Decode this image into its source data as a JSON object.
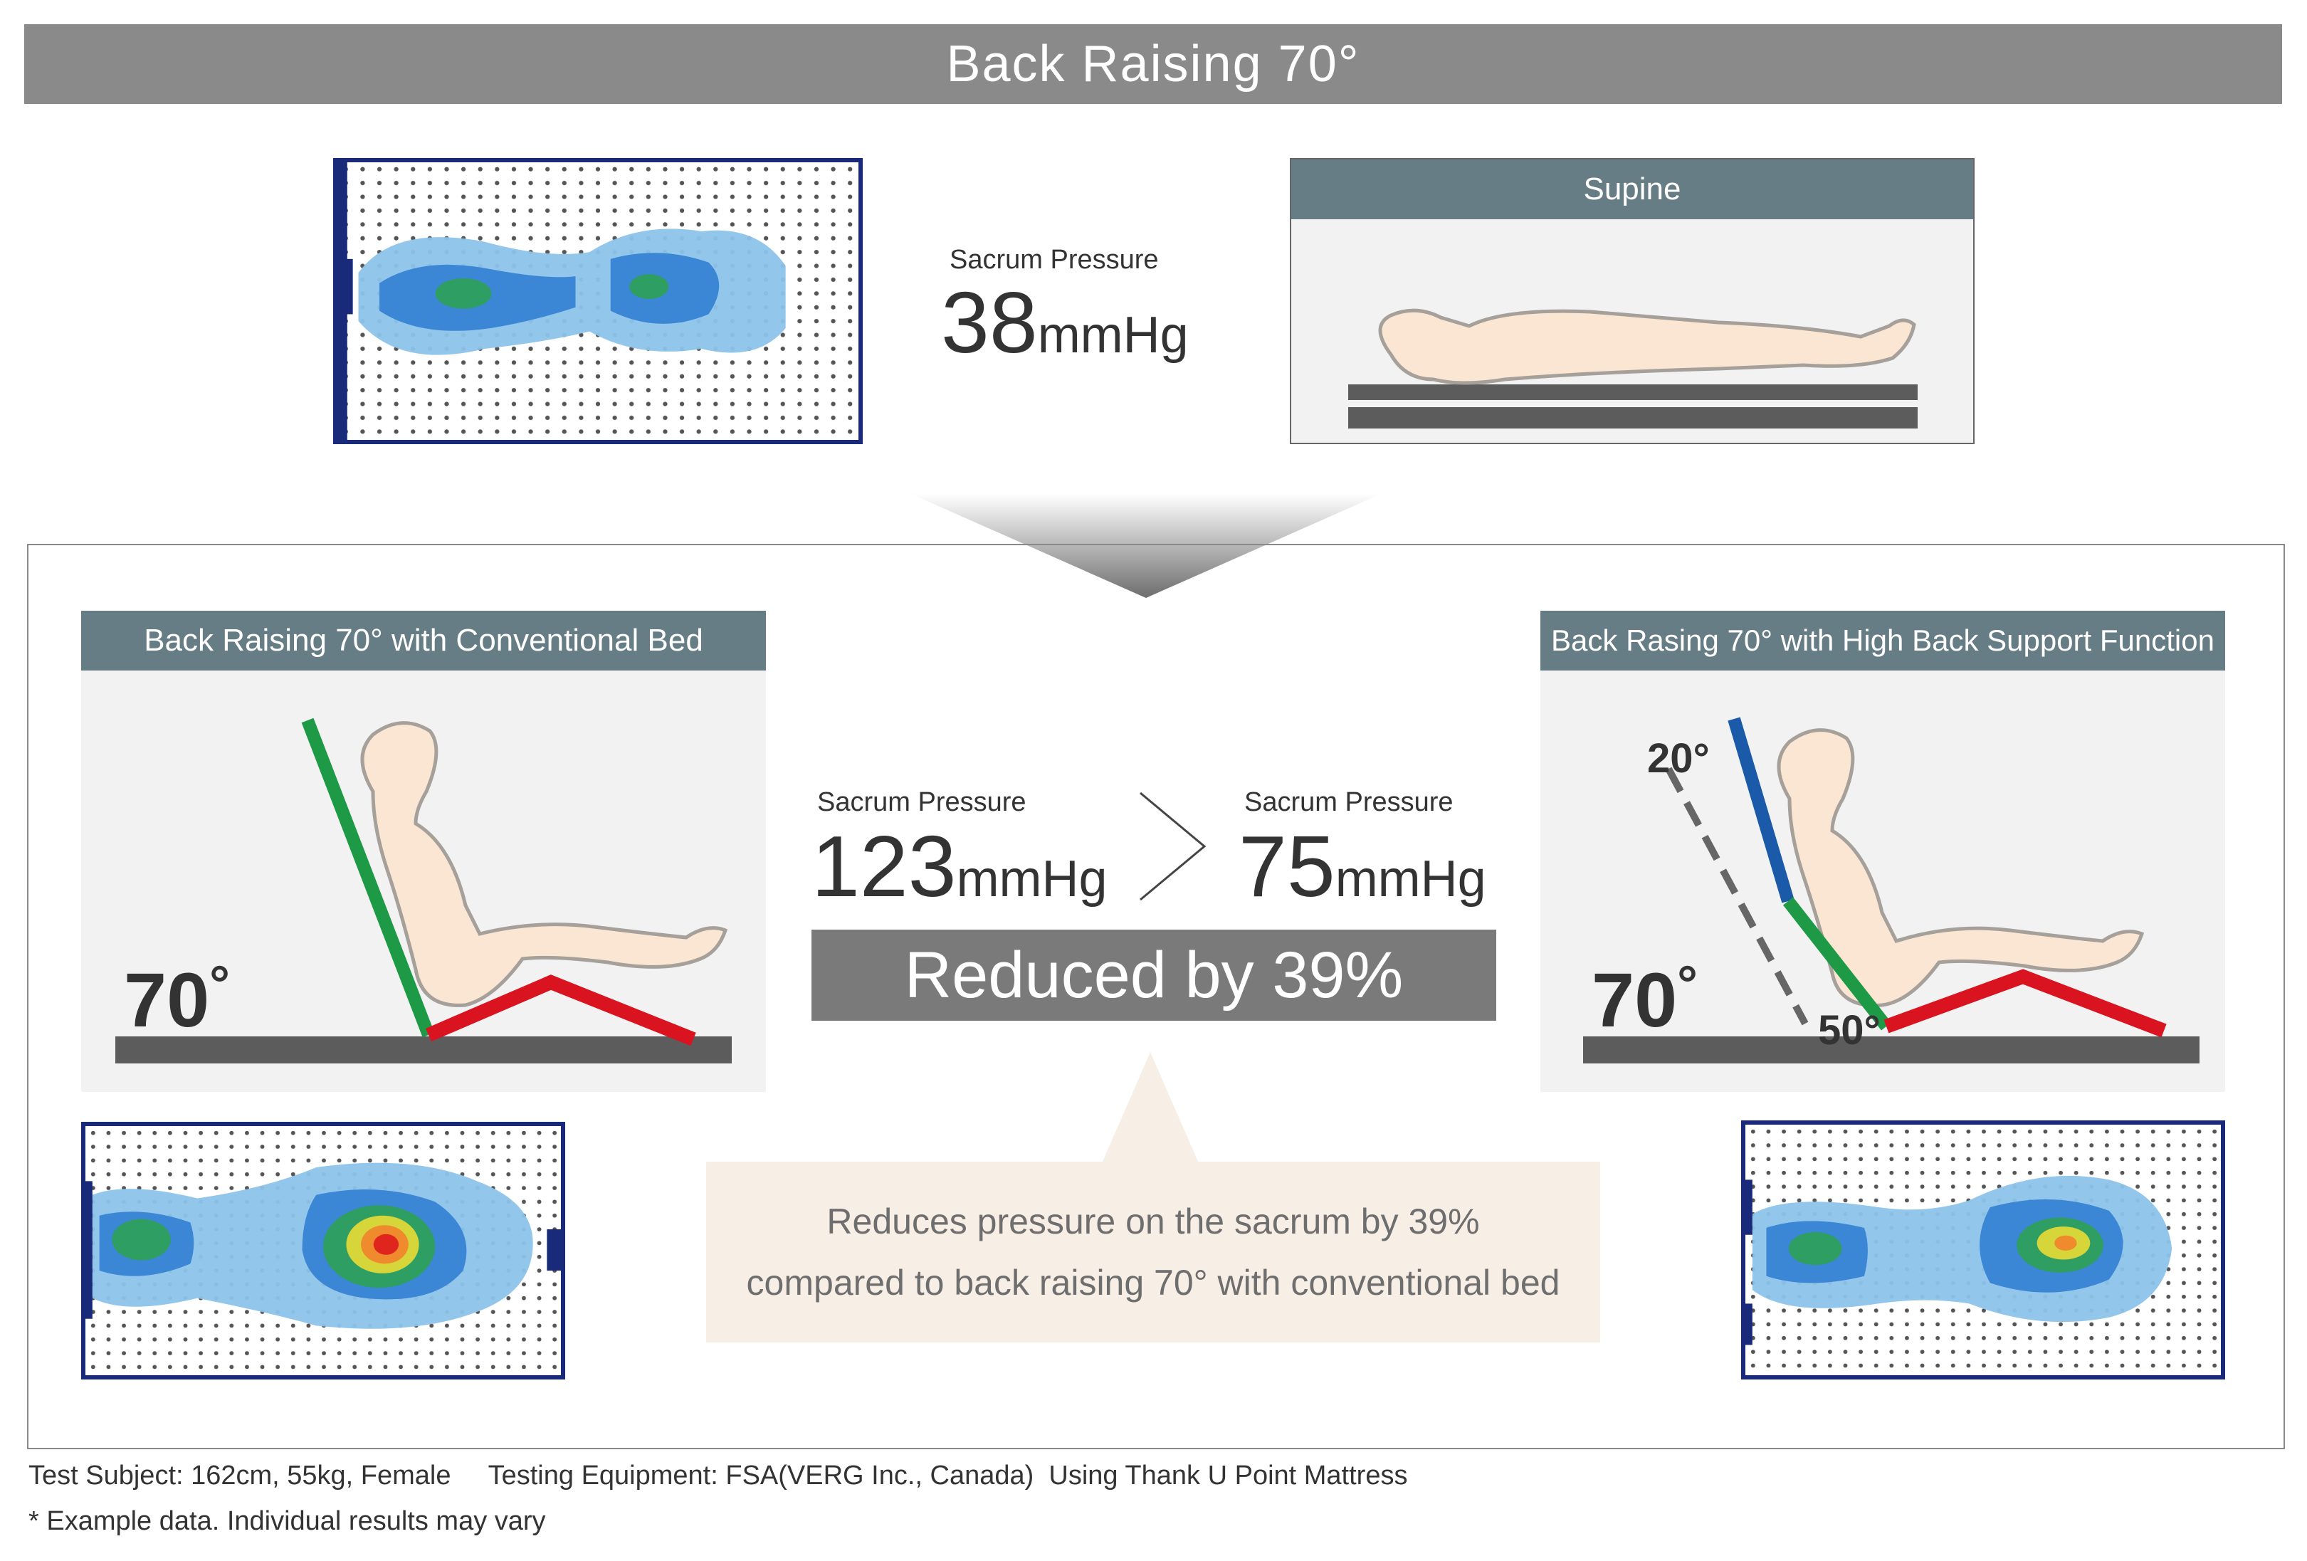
{
  "title": "Back Raising 70°",
  "top": {
    "pressure_label": "Sacrum Pressure",
    "pressure_value": "38",
    "pressure_unit": "mmHg",
    "panel_title": "Supine"
  },
  "left": {
    "panel_title": "Back Raising 70° with Conventional Bed",
    "angle": "70",
    "pressure_label": "Sacrum Pressure",
    "pressure_value": "123",
    "pressure_unit": "mmHg"
  },
  "right": {
    "panel_title": "Back Rasing 70° with High Back Support Function",
    "angle_main": "70",
    "angle_upper": "20°",
    "angle_lower": "50°",
    "pressure_label": "Sacrum Pressure",
    "pressure_value": "75",
    "pressure_unit": "mmHg"
  },
  "reduced_text": "Reduced by 39%",
  "callout": {
    "line1": "Reduces pressure on the sacrum by 39%",
    "line2": "compared to back raising 70° with conventional bed"
  },
  "footer": {
    "line1": "Test Subject: 162cm, 55kg, Female     Testing Equipment: FSA(VERG Inc., Canada)  Using Thank U Point Mattress",
    "line2": "* Example data. Individual results may vary"
  },
  "colors": {
    "title_bar": "#8a8a8a",
    "panel_header": "#667d86",
    "panel_bg": "#f2f2f2",
    "green_segment": "#1e9a47",
    "red_segment": "#d9131f",
    "blue_segment": "#1a5aa8",
    "bed_base": "#5c5c5c",
    "callout_bg": "#f7efe6",
    "map_border": "#1a2a7a",
    "body_fill": "#fbe6d4",
    "body_outline": "#a6a09a"
  },
  "icons": {
    "arrow_down": "down-triangle-icon",
    "greater_than": "greater-than-icon"
  }
}
